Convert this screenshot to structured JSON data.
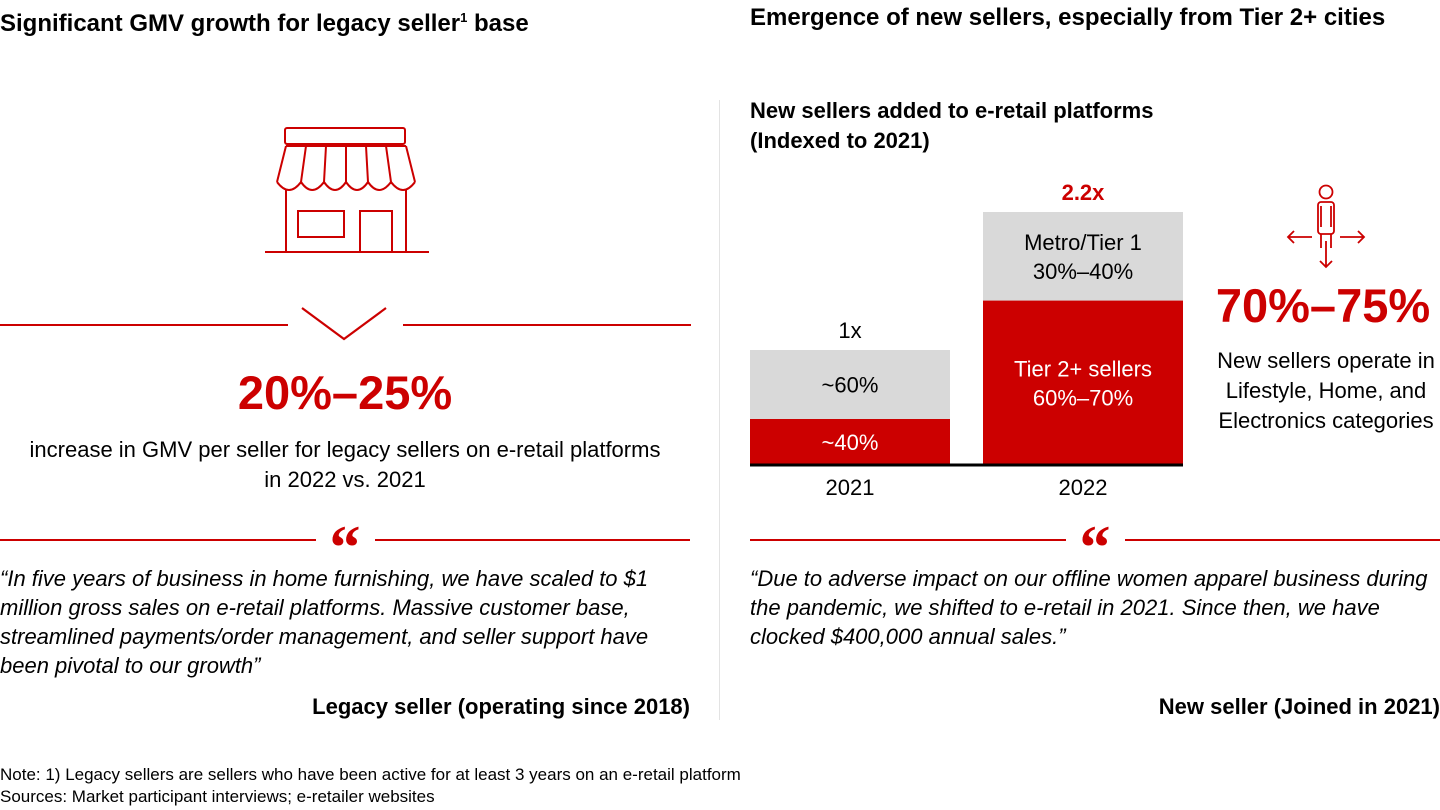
{
  "left": {
    "title": "Significant GMV growth for legacy seller",
    "title_sup": "1",
    "title_tail": " base",
    "stat": "20%–25%",
    "stat_caption": "increase in GMV per seller for legacy sellers on e-retail platforms in 2022 vs. 2021",
    "quote": "“In five years of business in home furnishing, we have scaled to $1 million gross sales on e-retail platforms. Massive customer base, streamlined payments/order management, and seller support have been pivotal to our growth”",
    "attribution": "Legacy seller (operating since 2018)",
    "icon": "storefront-icon"
  },
  "right": {
    "title": "Emergence of new sellers, especially from Tier 2+ cities",
    "chart_title": "New sellers added to e-retail platforms (Indexed to 2021)",
    "stat": "70%–75%",
    "stat_caption": "New sellers operate in Lifestyle, Home, and Electronics categories",
    "quote": "“Due to adverse impact on our offline women apparel business during the pandemic, we shifted to e-retail in 2021. Since then, we have clocked $400,000 annual sales.”",
    "attribution": "New seller (Joined in 2021)",
    "icon": "person-expand-icon"
  },
  "quote_mark": "“",
  "note": "Note: 1) Legacy sellers are sellers who have been active for at least 3 years on an e-retail platform",
  "sources": "Sources: Market participant interviews; e-retailer websites",
  "colors": {
    "accent": "#cc0000",
    "gray": "#d9d9d9",
    "axis": "#000000"
  },
  "chart_data": {
    "type": "bar",
    "stacked": true,
    "title": "New sellers added to e-retail platforms (Indexed to 2021)",
    "categories": [
      "2021",
      "2022"
    ],
    "totals": [
      1.0,
      2.2
    ],
    "total_labels": [
      "1x",
      "2.2x"
    ],
    "series": [
      {
        "color": "#cc0000",
        "values": [
          0.4,
          1.43
        ],
        "labels": [
          [
            "~40%"
          ],
          [
            "Tier 2+ sellers",
            "60%–70%"
          ]
        ]
      },
      {
        "color": "#d9d9d9",
        "values": [
          0.6,
          0.77
        ],
        "labels": [
          [
            "~60%"
          ],
          [
            "Metro/Tier 1",
            "30%–40%"
          ]
        ]
      }
    ]
  }
}
